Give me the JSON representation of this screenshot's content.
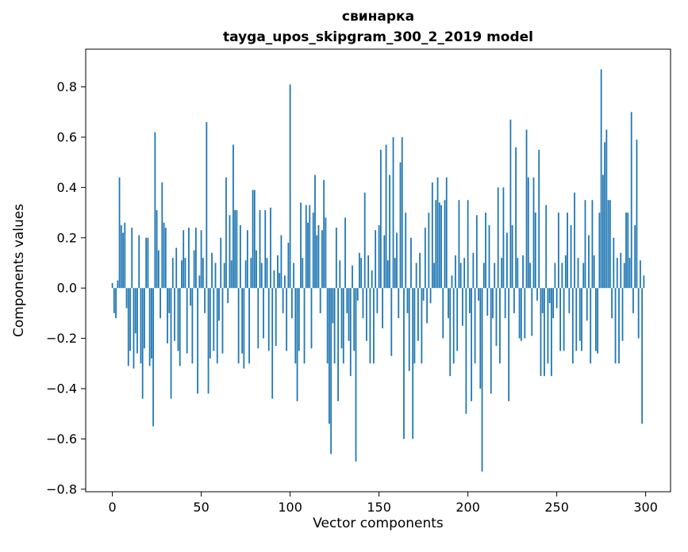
{
  "chart_data": {
    "type": "bar",
    "title": "свинарка",
    "subtitle": "tayga_upos_skipgram_300_2_2019 model",
    "xlabel": "Vector components",
    "ylabel": "Components values",
    "bar_color": "#1f77b4",
    "background_color": "#ffffff",
    "grid": false,
    "legend": false,
    "xlim": [
      -15,
      314
    ],
    "ylim": [
      -0.81,
      0.95
    ],
    "xtick_values": [
      0,
      50,
      100,
      150,
      200,
      250,
      300
    ],
    "xtick_labels": [
      "0",
      "50",
      "100",
      "150",
      "200",
      "250",
      "300"
    ],
    "ytick_values": [
      0.8,
      0.6,
      0.4,
      0.2,
      0.0,
      -0.2,
      -0.4,
      -0.6,
      -0.8
    ],
    "ytick_labels": [
      "0.8",
      "0.6",
      "0.4",
      "0.2",
      "0.0",
      "−0.2",
      "−0.4",
      "−0.6",
      "−0.8"
    ],
    "values": [
      0.02,
      -0.1,
      -0.12,
      0.03,
      0.44,
      0.25,
      0.22,
      0.26,
      -0.08,
      -0.31,
      -0.25,
      0.24,
      -0.32,
      -0.18,
      -0.26,
      0.21,
      -0.3,
      -0.44,
      -0.24,
      0.2,
      0.2,
      -0.31,
      -0.28,
      -0.55,
      0.62,
      0.31,
      0.15,
      -0.12,
      0.42,
      0.26,
      0.24,
      -0.22,
      -0.1,
      -0.44,
      0.12,
      -0.21,
      0.16,
      -0.25,
      -0.31,
      0.11,
      0.23,
      0.12,
      -0.26,
      0.24,
      -0.07,
      -0.3,
      0.15,
      0.24,
      -0.42,
      0.05,
      0.23,
      0.12,
      -0.1,
      0.66,
      -0.42,
      -0.28,
      0.14,
      -0.25,
      0.1,
      -0.3,
      -0.13,
      0.2,
      -0.26,
      0.1,
      0.44,
      -0.06,
      0.29,
      0.11,
      0.57,
      0.31,
      0.31,
      -0.3,
      0.25,
      -0.26,
      -0.32,
      0.11,
      0.23,
      -0.3,
      0.12,
      0.39,
      0.39,
      0.15,
      -0.24,
      0.31,
      0.1,
      -0.2,
      0.31,
      0.12,
      -0.25,
      0.32,
      -0.44,
      0.07,
      -0.23,
      0.13,
      0.06,
      0.21,
      -0.1,
      0.05,
      -0.25,
      0.18,
      0.81,
      -0.12,
      0.1,
      -0.3,
      -0.45,
      -0.25,
      0.34,
      0.12,
      -0.3,
      0.33,
      0.26,
      0.33,
      -0.24,
      0.3,
      0.45,
      0.21,
      0.25,
      -0.1,
      0.23,
      0.43,
      0.28,
      -0.3,
      -0.54,
      -0.66,
      -0.14,
      -0.3,
      0.24,
      -0.45,
      0.11,
      -0.24,
      -0.3,
      0.28,
      -0.1,
      -0.21,
      -0.35,
      0.09,
      -0.25,
      -0.69,
      -0.05,
      0.14,
      0.12,
      -0.12,
      0.38,
      -0.21,
      0.13,
      -0.3,
      0.07,
      -0.3,
      0.23,
      -0.1,
      0.25,
      0.55,
      -0.16,
      0.21,
      0.57,
      0.11,
      0.45,
      -0.27,
      0.6,
      0.12,
      0.22,
      -0.12,
      0.5,
      0.6,
      -0.6,
      0.3,
      -0.1,
      -0.33,
      0.2,
      -0.6,
      -0.3,
      0.1,
      -0.21,
      0.14,
      -0.3,
      -0.05,
      0.24,
      -0.14,
      0.3,
      -0.06,
      0.42,
      0.1,
      0.35,
      0.44,
      0.34,
      0.33,
      -0.2,
      0.35,
      0.44,
      -0.12,
      -0.35,
      0.05,
      -0.3,
      0.13,
      -0.25,
      0.35,
      0.1,
      -0.15,
      0.12,
      -0.5,
      0.35,
      -0.1,
      -0.45,
      0.14,
      -0.3,
      0.29,
      -0.05,
      -0.4,
      -0.73,
      0.1,
      0.3,
      -0.11,
      0.25,
      -0.42,
      -0.12,
      0.1,
      -0.23,
      0.4,
      -0.3,
      0.12,
      0.4,
      -0.12,
      0.22,
      -0.45,
      0.67,
      0.25,
      -0.1,
      0.56,
      0.12,
      -0.2,
      -0.21,
      0.13,
      -0.2,
      0.63,
      0.44,
      0.1,
      -0.19,
      0.44,
      0.3,
      -0.05,
      0.55,
      -0.35,
      -0.1,
      -0.35,
      0.33,
      -0.3,
      -0.06,
      -0.35,
      -0.12,
      0.1,
      -0.08,
      0.3,
      -0.25,
      0.1,
      -0.25,
      0.13,
      0.3,
      -0.1,
      0.25,
      -0.3,
      0.38,
      -0.25,
      0.12,
      -0.21,
      -0.25,
      0.1,
      0.35,
      -0.13,
      0.21,
      -0.3,
      0.35,
      0.13,
      -0.25,
      -0.26,
      0.3,
      0.87,
      0.45,
      0.58,
      0.63,
      0.35,
      0.35,
      -0.12,
      0.2,
      -0.3,
      0.12,
      -0.3,
      0.14,
      -0.21,
      0.1,
      0.3,
      0.3,
      0.12,
      0.7,
      -0.1,
      0.25,
      0.59,
      -0.2,
      0.11,
      -0.54,
      0.05
    ]
  }
}
